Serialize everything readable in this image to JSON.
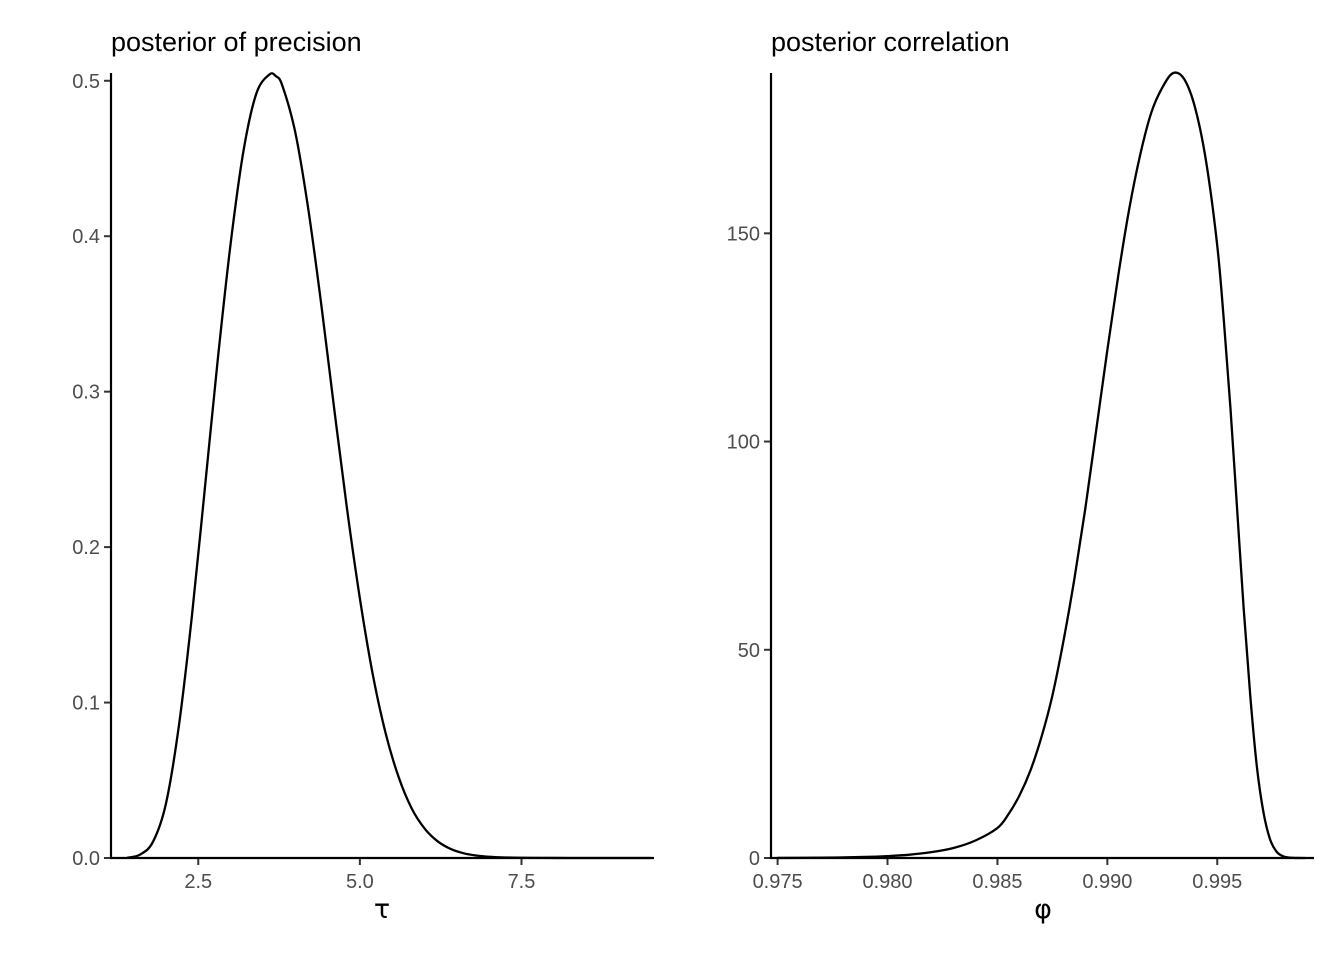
{
  "chart_data": [
    {
      "type": "line",
      "title": "posterior of precision",
      "xlabel": "τ",
      "ylabel": "",
      "xlim": [
        1.15,
        9.55
      ],
      "ylim": [
        0.0,
        0.505
      ],
      "grid": false,
      "x_ticks": [
        2.5,
        5.0,
        7.5
      ],
      "x_tick_labels": [
        "2.5",
        "5.0",
        "7.5"
      ],
      "y_ticks": [
        0.0,
        0.1,
        0.2,
        0.3,
        0.4,
        0.5
      ],
      "y_tick_labels": [
        "0.0",
        "0.1",
        "0.2",
        "0.3",
        "0.4",
        "0.5"
      ],
      "series": [
        {
          "color": "#000000",
          "x": [
            1.4,
            1.6,
            1.8,
            2.0,
            2.2,
            2.4,
            2.6,
            2.8,
            3.0,
            3.2,
            3.4,
            3.6,
            3.7,
            3.8,
            4.0,
            4.2,
            4.4,
            4.6,
            4.8,
            5.0,
            5.2,
            5.4,
            5.6,
            5.8,
            6.0,
            6.2,
            6.4,
            6.6,
            6.8,
            7.0,
            7.2,
            7.5,
            8.0,
            8.5,
            9.0,
            9.5
          ],
          "y": [
            0.0002,
            0.0022,
            0.0105,
            0.035,
            0.085,
            0.155,
            0.237,
            0.32,
            0.395,
            0.455,
            0.492,
            0.504,
            0.503,
            0.497,
            0.467,
            0.418,
            0.357,
            0.29,
            0.225,
            0.167,
            0.118,
            0.08,
            0.052,
            0.032,
            0.019,
            0.0108,
            0.0059,
            0.0031,
            0.0016,
            0.0008,
            0.0004,
            0.00015,
            3e-05,
            0.0,
            0.0,
            0.0
          ]
        }
      ]
    },
    {
      "type": "line",
      "title": "posterior correlation",
      "xlabel": "φ",
      "ylabel": "",
      "xlim": [
        0.9747,
        0.9994
      ],
      "ylim": [
        0,
        188.5
      ],
      "grid": false,
      "x_ticks": [
        0.975,
        0.98,
        0.985,
        0.99,
        0.995
      ],
      "x_tick_labels": [
        "0.975",
        "0.980",
        "0.985",
        "0.990",
        "0.995"
      ],
      "y_ticks": [
        0,
        50,
        100,
        150
      ],
      "y_tick_labels": [
        "0",
        "50",
        "100",
        "150"
      ],
      "series": [
        {
          "color": "#000000",
          "x": [
            0.975,
            0.977,
            0.979,
            0.98,
            0.981,
            0.982,
            0.983,
            0.984,
            0.985,
            0.9855,
            0.986,
            0.9865,
            0.987,
            0.9875,
            0.988,
            0.9885,
            0.989,
            0.9895,
            0.99,
            0.9905,
            0.991,
            0.9915,
            0.992,
            0.9925,
            0.993,
            0.9935,
            0.994,
            0.9945,
            0.995,
            0.9953,
            0.9956,
            0.9959,
            0.9962,
            0.9965,
            0.9968,
            0.9971,
            0.9974,
            0.9977,
            0.998,
            0.9983,
            0.9986,
            0.999
          ],
          "y": [
            0.02,
            0.08,
            0.25,
            0.45,
            0.8,
            1.4,
            2.4,
            4.2,
            7.2,
            10.5,
            15,
            21,
            29,
            39,
            52,
            67,
            84,
            103,
            122,
            140,
            156,
            169,
            179,
            185,
            188.5,
            187,
            180,
            167,
            147,
            129,
            108,
            84,
            60,
            39,
            22,
            11,
            4.5,
            1.5,
            0.4,
            0.08,
            0.01,
            0.0
          ]
        }
      ]
    }
  ]
}
